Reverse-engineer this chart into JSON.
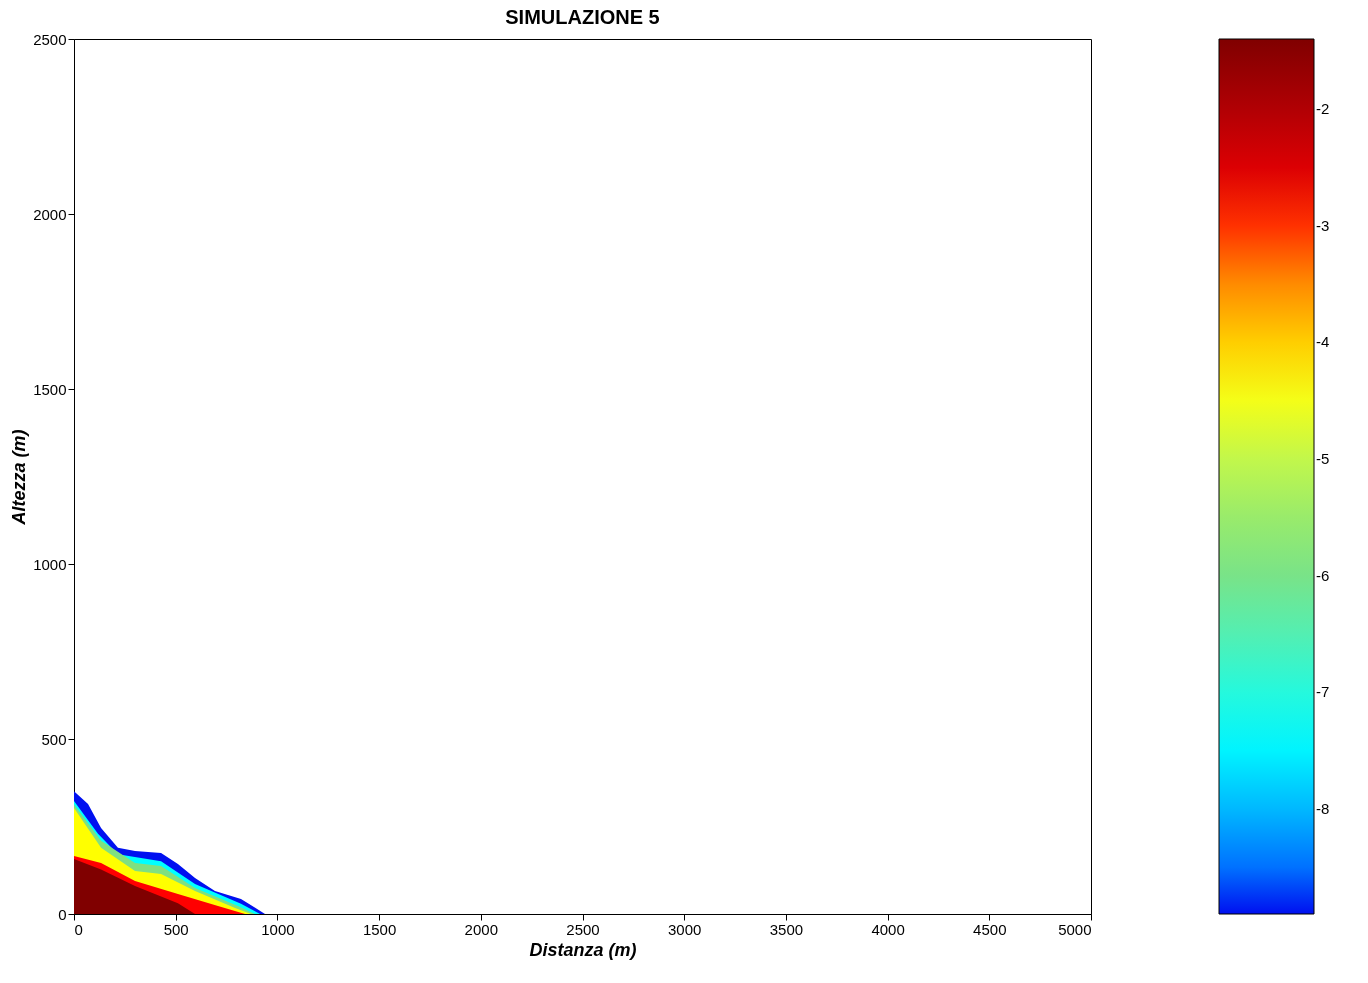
{
  "chart_data": {
    "type": "area",
    "title": "SIMULAZIONE 5",
    "xlabel": "Distanza (m)",
    "ylabel": "Altezza (m)",
    "xlim": [
      0,
      5000
    ],
    "xticks": [
      0,
      500,
      1000,
      1500,
      2000,
      2500,
      3000,
      3500,
      4000,
      4500,
      5000
    ],
    "ylim": [
      0,
      2500
    ],
    "yticks": [
      0,
      500,
      1000,
      1500,
      2000,
      2500
    ],
    "clim": [
      -8.9,
      -1.4
    ],
    "cticks": [
      -8,
      -7,
      -6,
      -5,
      -4,
      -3,
      -2
    ],
    "grid": false,
    "series": [
      {
        "color": "#0010f0",
        "x": [
          0,
          69,
          133,
          216,
          300,
          428,
          511,
          595,
          693,
          821,
          939
        ],
        "values": [
          351,
          314,
          246,
          189,
          180,
          174,
          143,
          103,
          66,
          43,
          0
        ]
      },
      {
        "color": "#00ffff",
        "x": [
          0,
          118,
          216,
          428,
          595,
          821,
          915
        ],
        "values": [
          323,
          229,
          171,
          151,
          86,
          29,
          0
        ]
      },
      {
        "color": "#80e080",
        "x": [
          0,
          133,
          300,
          428,
          595,
          806,
          890
        ],
        "values": [
          313,
          209,
          146,
          137,
          74,
          23,
          0
        ]
      },
      {
        "color": "#ffff00",
        "x": [
          0,
          133,
          300,
          428,
          595,
          792,
          870
        ],
        "values": [
          303,
          189,
          123,
          114,
          66,
          17,
          0
        ]
      },
      {
        "color": "#ff0000",
        "x": [
          0,
          133,
          300,
          511,
          708,
          841
        ],
        "values": [
          166,
          146,
          94,
          57,
          23,
          0
        ]
      },
      {
        "color": "#800000",
        "x": [
          0,
          133,
          300,
          511,
          595
        ],
        "values": [
          157,
          127,
          80,
          31,
          0
        ]
      }
    ]
  }
}
